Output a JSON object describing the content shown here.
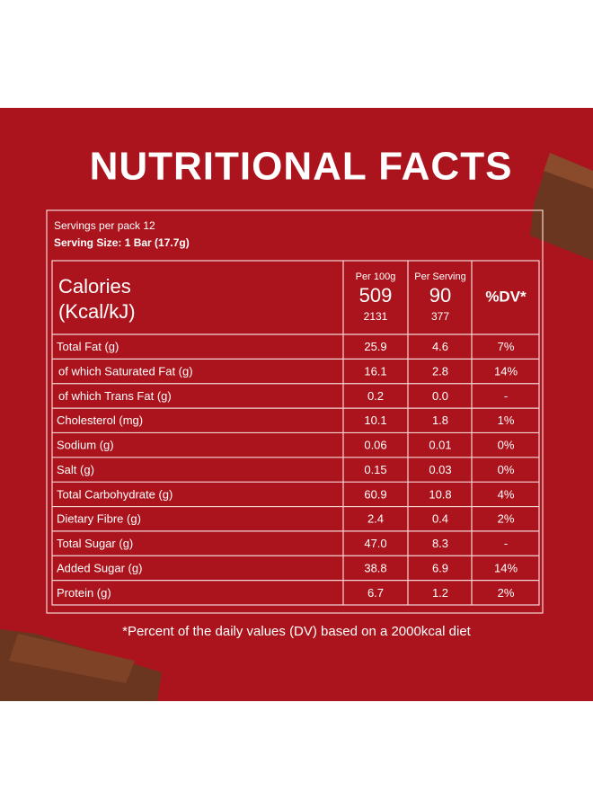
{
  "header": {
    "title": "NUTRITIONAL FACTS"
  },
  "serving": {
    "per_pack": "Servings per pack 12",
    "size": "Serving Size: 1 Bar (17.7g)"
  },
  "table": {
    "head": {
      "label": [
        "Calories",
        "(Kcal/kJ)"
      ],
      "per_100g": {
        "label": "Per 100g",
        "kcal": "509",
        "kj": "2131"
      },
      "per_serving": {
        "label": "Per Serving",
        "kcal": "90",
        "kj": "377"
      },
      "dv": "%DV*"
    },
    "rows": [
      [
        "Total Fat (g)",
        "25.9",
        "4.6",
        "7%"
      ],
      [
        "of which Saturated Fat (g)",
        "16.1",
        "2.8",
        "14%"
      ],
      [
        "of which Trans Fat (g)",
        "0.2",
        "0.0",
        "-"
      ],
      [
        "Cholesterol (mg)",
        "10.1",
        "1.8",
        "1%"
      ],
      [
        "Sodium (g)",
        "0.06",
        "0.01",
        "0%"
      ],
      [
        "Salt (g)",
        "0.15",
        "0.03",
        "0%"
      ],
      [
        "Total Carbohydrate (g)",
        "60.9",
        "10.8",
        "4%"
      ],
      [
        "Dietary Fibre (g)",
        "2.4",
        "0.4",
        "2%"
      ],
      [
        "Total Sugar (g)",
        "47.0",
        "8.3",
        "-"
      ],
      [
        "Added Sugar (g)",
        "38.8",
        "6.9",
        "14%"
      ],
      [
        "Protein (g)",
        "6.7",
        "1.2",
        "2%"
      ]
    ]
  },
  "footnote": "*Percent of the daily values (DV) based on a 2000kcal diet"
}
